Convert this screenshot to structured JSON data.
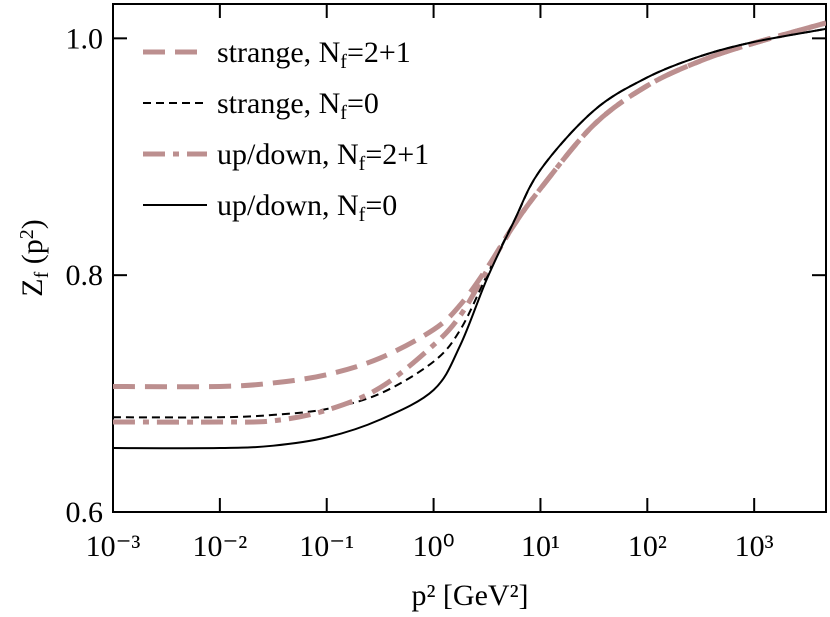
{
  "chart_data": {
    "type": "line",
    "xlabel": "p² [GeV²]",
    "ylabel": [
      {
        "t": "Z"
      },
      {
        "t": "f",
        "s": "sub"
      },
      {
        "t": " (p"
      },
      {
        "t": "2",
        "s": "sup"
      },
      {
        "t": ")"
      }
    ],
    "xscale": "log",
    "xlim": [
      0.001,
      4700
    ],
    "ylim": [
      0.6,
      1.029
    ],
    "xticks": [
      {
        "value": 0.001,
        "label": "10⁻³"
      },
      {
        "value": 0.01,
        "label": "10⁻²"
      },
      {
        "value": 0.1,
        "label": "10⁻¹"
      },
      {
        "value": 1,
        "label": "10⁰"
      },
      {
        "value": 10,
        "label": "10¹"
      },
      {
        "value": 100,
        "label": "10²"
      },
      {
        "value": 1000,
        "label": "10³"
      }
    ],
    "yticks": [
      0.6,
      0.8,
      {
        "value": 1,
        "label": "1.0"
      }
    ],
    "legend": "upper left",
    "x": [
      0.001,
      0.01,
      0.0316,
      0.1,
      0.316,
      1,
      1.78,
      3.16,
      5.62,
      10,
      31.6,
      100,
      316,
      1000,
      4700
    ],
    "series": [
      {
        "name": [
          {
            "t": "strange, N"
          },
          {
            "t": "f",
            "s": "sub"
          },
          {
            "t": "=2+1"
          }
        ],
        "color": "#bc8f8f",
        "style": "dashed",
        "width": 5,
        "values": [
          0.706,
          0.706,
          0.709,
          0.716,
          0.73,
          0.754,
          0.775,
          0.806,
          0.842,
          0.873,
          0.927,
          0.96,
          0.981,
          0.996,
          1.013
        ]
      },
      {
        "name": [
          {
            "t": "strange, N"
          },
          {
            "t": "f",
            "s": "sub"
          },
          {
            "t": "=0"
          }
        ],
        "color": "#000000",
        "style": "dashed",
        "width": 2,
        "values": [
          0.68,
          0.68,
          0.682,
          0.687,
          0.7,
          0.727,
          0.754,
          0.8,
          0.845,
          0.889,
          0.939,
          0.967,
          0.985,
          0.997,
          1.008
        ]
      },
      {
        "name": [
          {
            "t": "up/down, N"
          },
          {
            "t": "f",
            "s": "sub"
          },
          {
            "t": "=2+1"
          }
        ],
        "color": "#bc8f8f",
        "style": "dashdot",
        "width": 5,
        "values": [
          0.676,
          0.676,
          0.677,
          0.686,
          0.705,
          0.741,
          0.766,
          0.804,
          0.842,
          0.873,
          0.927,
          0.96,
          0.981,
          0.996,
          1.013
        ]
      },
      {
        "name": [
          {
            "t": "up/down, N"
          },
          {
            "t": "f",
            "s": "sub"
          },
          {
            "t": "=0"
          }
        ],
        "color": "#000000",
        "style": "solid",
        "width": 2,
        "values": [
          0.654,
          0.654,
          0.656,
          0.663,
          0.678,
          0.703,
          0.741,
          0.797,
          0.845,
          0.889,
          0.939,
          0.967,
          0.985,
          0.997,
          1.008
        ]
      }
    ]
  }
}
